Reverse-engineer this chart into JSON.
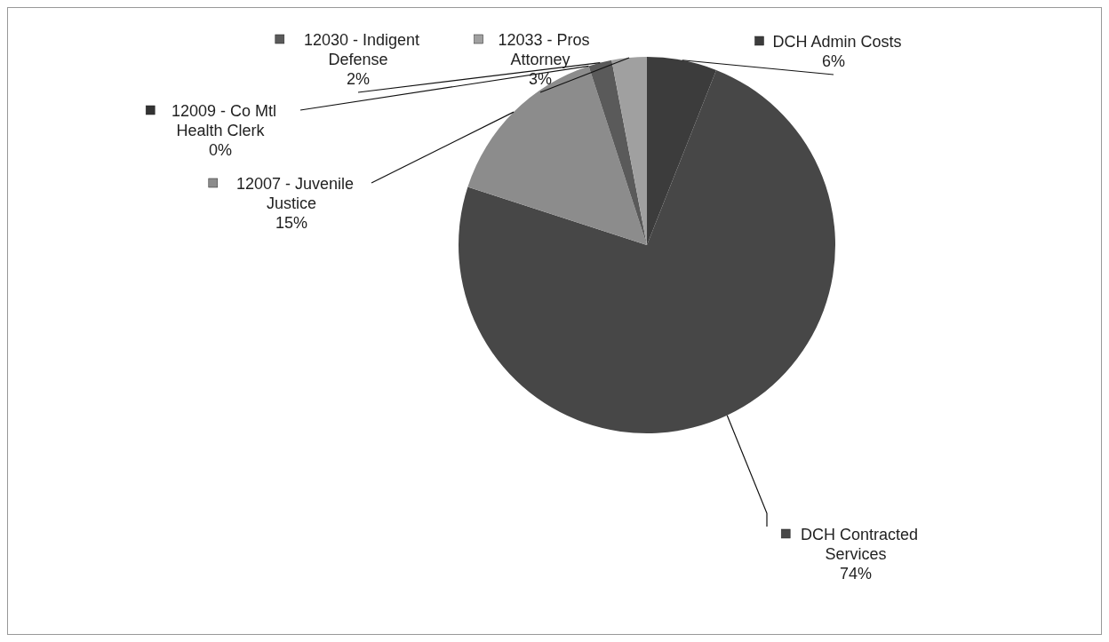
{
  "chart_data": {
    "type": "pie",
    "categories": [
      "DCH Admin Costs",
      "DCH Contracted Services",
      "12007 - Juvenile Justice",
      "12009 - Co Mtl Health Clerk",
      "12030 - Indigent Defense",
      "12033 - Pros Attorney"
    ],
    "values": [
      6,
      74,
      15,
      0,
      2,
      3
    ],
    "value_labels": [
      "6%",
      "74%",
      "15%",
      "0%",
      "2%",
      "3%"
    ],
    "colors": [
      "#3c3c3c",
      "#474747",
      "#8c8c8c",
      "#333333",
      "#5a5a5a",
      "#a0a0a0"
    ],
    "legend": "bottom left"
  }
}
